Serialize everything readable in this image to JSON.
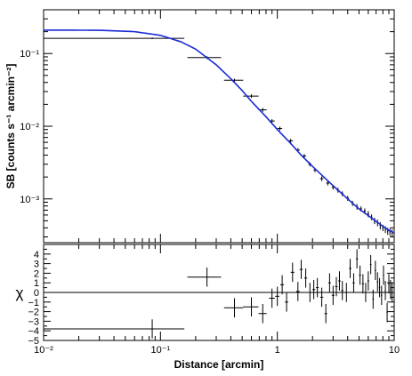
{
  "chart_data": [
    {
      "type": "scatter",
      "title": "",
      "xlabel": "Distance [arcmin]",
      "ylabel": "SB [counts s⁻¹ arcmin⁻²]",
      "xscale": "log",
      "yscale": "log",
      "xlim": [
        0.01,
        10
      ],
      "ylim": [
        0.00025,
        0.4
      ],
      "grid": false,
      "legend": "none",
      "x_tick_labels": [
        "10⁻²",
        "10⁻¹",
        "1",
        "10"
      ],
      "y_tick_labels": [
        "10⁻³",
        "10⁻²",
        "10⁻¹"
      ],
      "model_color": "#1a2bd6",
      "model": {
        "name": "model",
        "x": [
          0.01,
          0.03,
          0.06,
          0.1,
          0.15,
          0.2,
          0.3,
          0.4,
          0.5,
          0.6,
          0.8,
          1.0,
          1.3,
          1.6,
          2.0,
          2.5,
          3.0,
          4.0,
          5.0,
          6.0,
          7.0,
          8.0,
          9.0,
          10.0
        ],
        "y": [
          0.21,
          0.209,
          0.2,
          0.178,
          0.145,
          0.115,
          0.07,
          0.045,
          0.031,
          0.022,
          0.0135,
          0.009,
          0.0058,
          0.004,
          0.0028,
          0.002,
          0.00152,
          0.001,
          0.00073,
          0.00059,
          0.00049,
          0.00042,
          0.00037,
          0.00034
        ]
      },
      "data": {
        "name": "data",
        "x": [
          0.085,
          0.25,
          0.43,
          0.6,
          0.75,
          0.9,
          1.05,
          1.3,
          1.5,
          1.7,
          1.9,
          2.1,
          2.4,
          2.7,
          3.0,
          3.3,
          3.6,
          4.0,
          4.4,
          4.8,
          5.2,
          5.6,
          6.0,
          6.4,
          6.8,
          7.2,
          7.6,
          8.0,
          8.4,
          8.8,
          9.2,
          9.6
        ],
        "x_err_low": [
          0.075,
          0.08,
          0.08,
          0.09,
          0.06,
          0.05,
          0.05,
          0.06,
          0.06,
          0.06,
          0.06,
          0.06,
          0.08,
          0.08,
          0.08,
          0.08,
          0.08,
          0.1,
          0.1,
          0.1,
          0.1,
          0.1,
          0.1,
          0.1,
          0.1,
          0.1,
          0.1,
          0.1,
          0.1,
          0.1,
          0.1,
          0.1
        ],
        "x_err_high": [
          0.075,
          0.08,
          0.08,
          0.09,
          0.06,
          0.05,
          0.05,
          0.06,
          0.06,
          0.06,
          0.06,
          0.06,
          0.08,
          0.08,
          0.08,
          0.08,
          0.08,
          0.1,
          0.1,
          0.1,
          0.1,
          0.1,
          0.1,
          0.1,
          0.1,
          0.1,
          0.1,
          0.1,
          0.1,
          0.1,
          0.1,
          0.1
        ],
        "y": [
          0.162,
          0.088,
          0.043,
          0.026,
          0.0168,
          0.0118,
          0.0093,
          0.0063,
          0.0047,
          0.0039,
          0.003,
          0.0025,
          0.0019,
          0.00165,
          0.00145,
          0.00132,
          0.00118,
          0.00102,
          0.00087,
          0.00078,
          0.00073,
          0.00068,
          0.00062,
          0.00056,
          0.0005,
          0.00047,
          0.00043,
          0.0004,
          0.00038,
          0.00036,
          0.00035,
          0.00034
        ],
        "y_err": [
          0.004,
          0.004,
          0.002,
          0.0015,
          0.001,
          0.0007,
          0.0006,
          0.0004,
          0.0003,
          0.00025,
          0.0002,
          0.00017,
          0.00014,
          0.00012,
          0.00011,
          0.0001,
          9e-05,
          8e-05,
          7e-05,
          7e-05,
          6e-05,
          6e-05,
          6e-05,
          5e-05,
          5e-05,
          5e-05,
          5e-05,
          4e-05,
          4e-05,
          4e-05,
          4e-05,
          4e-05
        ]
      }
    },
    {
      "type": "scatter",
      "title": "",
      "xlabel": "Distance [arcmin]",
      "ylabel": "χ",
      "xscale": "log",
      "xlim": [
        0.01,
        10
      ],
      "ylim": [
        -5,
        5
      ],
      "grid": false,
      "legend": "none",
      "reference_line": 0,
      "x_tick_labels": [
        "10⁻²",
        "10⁻¹",
        "1",
        "10"
      ],
      "y_tick_labels": [
        "4",
        "3",
        "2",
        "1",
        "0",
        "−1",
        "−2",
        "−3",
        "−4",
        "−5"
      ],
      "y_tick_values": [
        4,
        3,
        2,
        1,
        0,
        -1,
        -2,
        -3,
        -4,
        -5
      ],
      "x": [
        0.085,
        0.25,
        0.43,
        0.6,
        0.75,
        0.9,
        1.0,
        1.1,
        1.2,
        1.35,
        1.5,
        1.6,
        1.75,
        1.9,
        2.05,
        2.2,
        2.4,
        2.6,
        2.8,
        3.0,
        3.2,
        3.4,
        3.6,
        3.9,
        4.2,
        4.5,
        4.8,
        5.1,
        5.4,
        5.7,
        6.0,
        6.3,
        6.6,
        6.9,
        7.2,
        7.5,
        7.8,
        8.1,
        8.4,
        8.7,
        9.0,
        9.3,
        9.6
      ],
      "x_err_low": [
        0.075,
        0.08,
        0.08,
        0.09,
        0.06,
        0.05,
        0.04,
        0.04,
        0.04,
        0.05,
        0.05,
        0.05,
        0.05,
        0.06,
        0.06,
        0.06,
        0.07,
        0.07,
        0.07,
        0.08,
        0.08,
        0.08,
        0.08,
        0.1,
        0.1,
        0.1,
        0.1,
        0.1,
        0.1,
        0.1,
        0.1,
        0.1,
        0.1,
        0.1,
        0.1,
        0.1,
        0.1,
        0.1,
        0.1,
        0.1,
        0.1,
        0.1,
        0.1
      ],
      "x_err_high": [
        0.075,
        0.08,
        0.08,
        0.09,
        0.06,
        0.05,
        0.04,
        0.04,
        0.04,
        0.05,
        0.05,
        0.05,
        0.05,
        0.06,
        0.06,
        0.06,
        0.07,
        0.07,
        0.07,
        0.08,
        0.08,
        0.08,
        0.08,
        0.1,
        0.1,
        0.1,
        0.1,
        0.1,
        0.1,
        0.1,
        0.1,
        0.1,
        0.1,
        0.1,
        0.1,
        0.1,
        0.1,
        0.1,
        0.1,
        0.1,
        0.1,
        0.1,
        0.1
      ],
      "y": [
        -3.8,
        1.6,
        -1.6,
        -1.5,
        -2.2,
        -0.6,
        -0.4,
        0.8,
        -1.0,
        2.1,
        0.1,
        2.4,
        1.5,
        0.0,
        0.3,
        0.5,
        -0.5,
        -2.2,
        1.0,
        -0.3,
        0.6,
        1.2,
        0.2,
        0.0,
        2.5,
        1.0,
        3.5,
        1.8,
        0.9,
        0.0,
        1.2,
        2.9,
        -0.7,
        2.3,
        1.1,
        0.5,
        -0.3,
        1.8,
        0.2,
        -2.1,
        0.9,
        0.3,
        0.0
      ],
      "y_err": [
        1.0,
        1.0,
        1.0,
        1.0,
        1.0,
        1.0,
        1.0,
        1.0,
        1.0,
        1.0,
        1.0,
        1.0,
        1.0,
        1.0,
        1.0,
        1.0,
        1.0,
        1.0,
        1.0,
        1.0,
        1.0,
        1.0,
        1.0,
        1.0,
        1.0,
        1.0,
        1.0,
        1.0,
        1.0,
        1.0,
        1.0,
        1.0,
        1.0,
        1.0,
        1.0,
        1.0,
        1.0,
        1.0,
        1.0,
        1.0,
        1.0,
        1.0,
        1.0
      ]
    }
  ]
}
